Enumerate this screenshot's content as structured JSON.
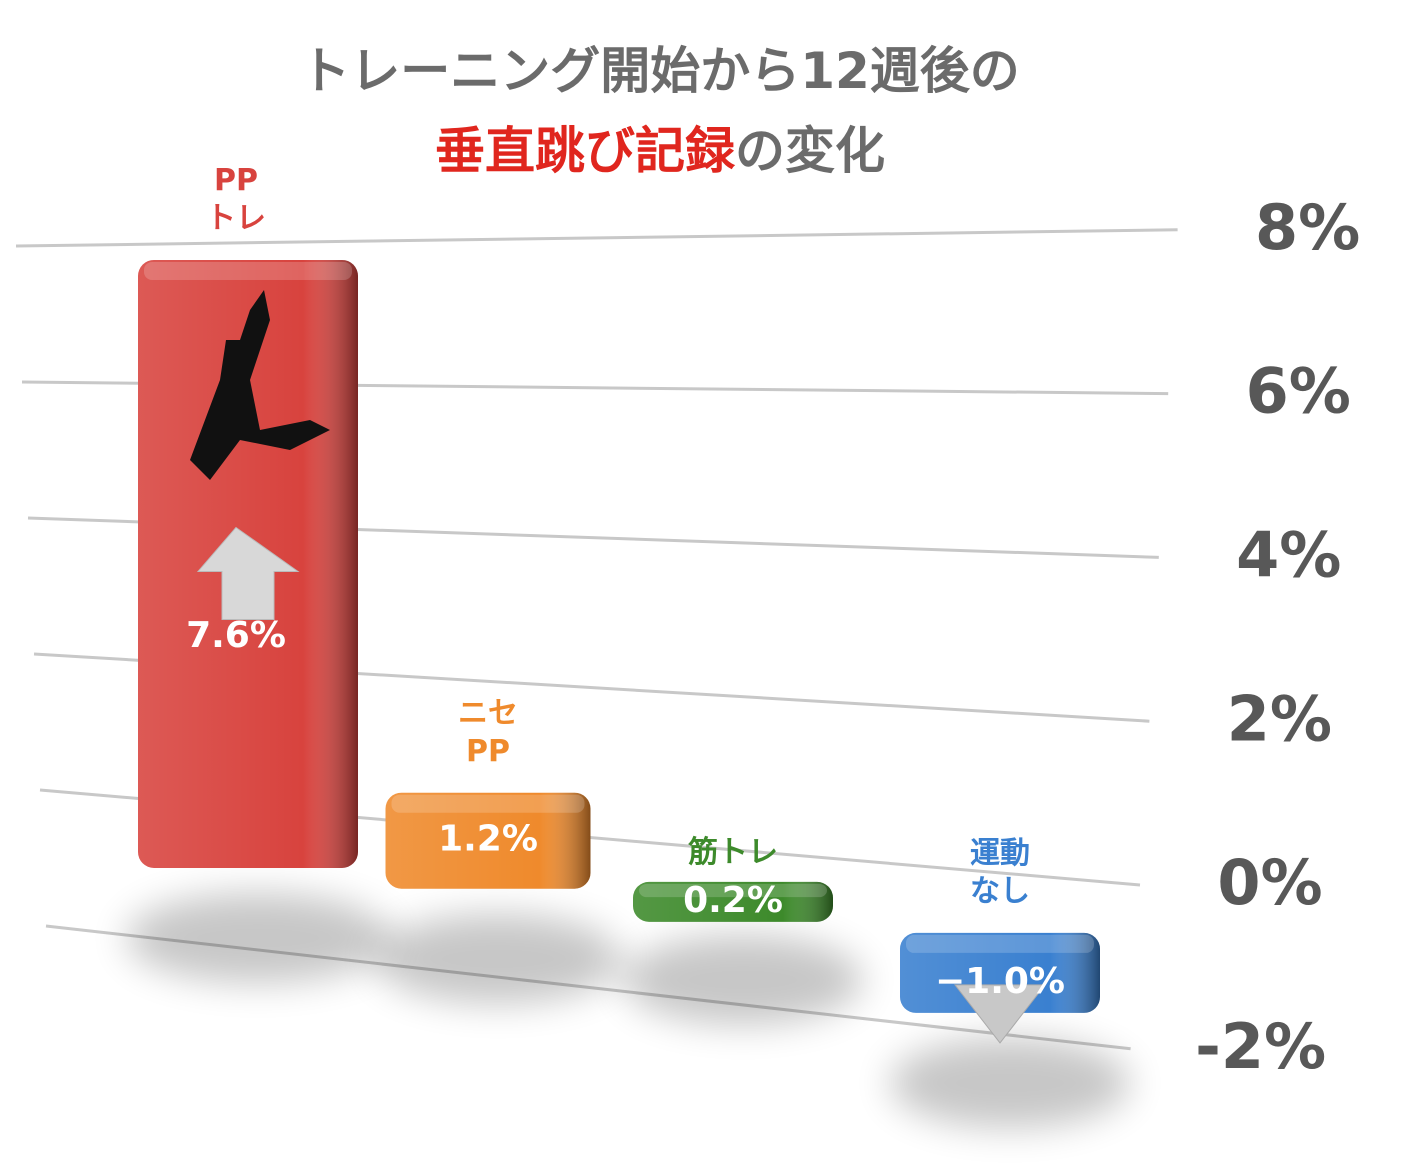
{
  "chart_data": {
    "type": "bar",
    "title": {
      "line1": "トレーニング開始から12週後の",
      "highlight": "垂直跳び記録",
      "rest": "の変化"
    },
    "categories": [
      "PP\nトレ",
      "ニセ\nPP",
      "筋トレ",
      "運動\nなし"
    ],
    "values": [
      7.6,
      1.2,
      0.2,
      -1.0
    ],
    "value_labels": [
      "7.6%",
      "1.2%",
      "0.2%",
      "−1.0%"
    ],
    "colors": [
      "#d8433e",
      "#ef8a2c",
      "#3d8a2b",
      "#3a80d0"
    ],
    "ylim": [
      -2,
      8
    ],
    "yticks": [
      {
        "value": -2,
        "label": "-2%"
      },
      {
        "value": 0,
        "label": "0%"
      },
      {
        "value": 2,
        "label": "2%"
      },
      {
        "value": 4,
        "label": "4%"
      },
      {
        "value": 6,
        "label": "6%"
      },
      {
        "value": 8,
        "label": "8%"
      }
    ],
    "grid": true
  }
}
